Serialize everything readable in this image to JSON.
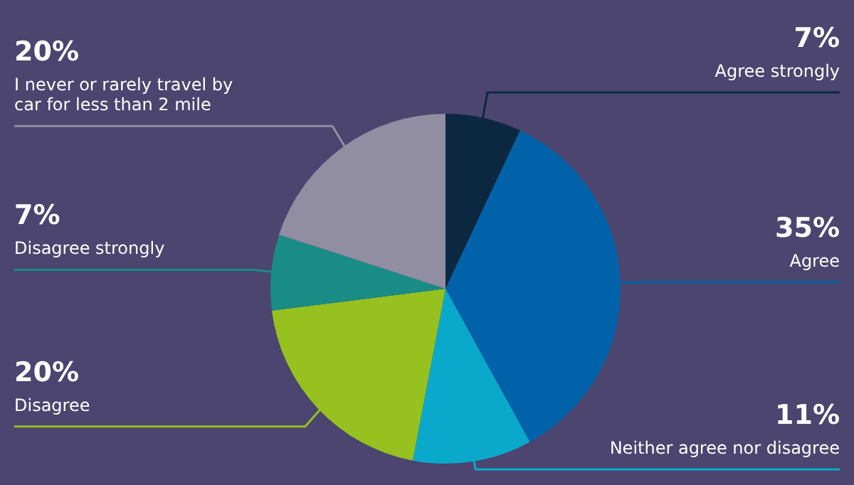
{
  "chart_data": {
    "type": "pie",
    "categories": [
      "Agree strongly",
      "Agree",
      "Neither agree nor disagree",
      "Disagree",
      "Disagree strongly",
      "I never or rarely travel by car for less than 2 mile"
    ],
    "values": [
      7,
      35,
      11,
      20,
      7,
      20
    ],
    "value_labels": [
      "7%",
      "35%",
      "11%",
      "20%",
      "7%",
      "20%"
    ],
    "colors": [
      "#0c2840",
      "#0062a8",
      "#0aa9cc",
      "#96c11f",
      "#1a8c86",
      "#918da3"
    ]
  }
}
